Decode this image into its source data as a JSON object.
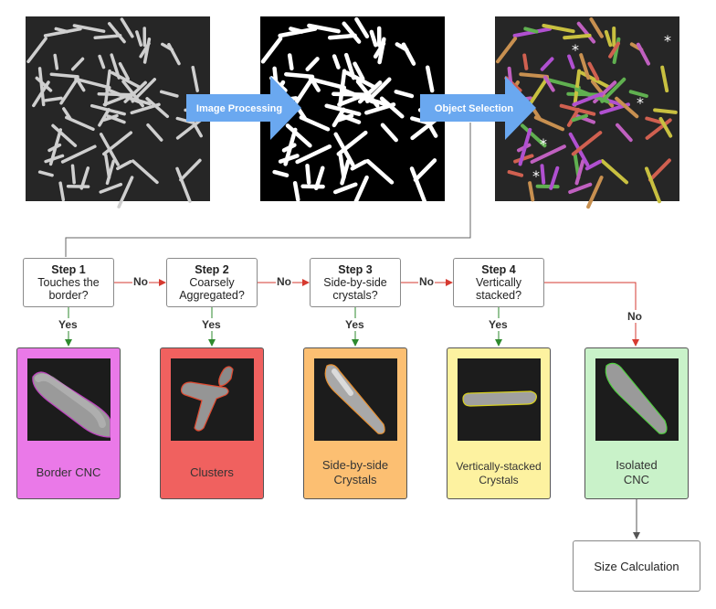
{
  "arrows": {
    "image_processing": "Image Processing",
    "object_selection": "Object Selection"
  },
  "steps": [
    {
      "title": "Step 1",
      "text1": "Touches the",
      "text2": "border?"
    },
    {
      "title": "Step 2",
      "text1": "Coarsely",
      "text2": "Aggregated?"
    },
    {
      "title": "Step 3",
      "text1": "Side-by-side",
      "text2": "crystals?"
    },
    {
      "title": "Step 4",
      "text1": "Vertically",
      "text2": "stacked?"
    }
  ],
  "labels": {
    "no": "No",
    "yes": "Yes"
  },
  "cards": [
    {
      "line1": "Border CNC",
      "line2": "",
      "color": "#ea79e8"
    },
    {
      "line1": "Clusters",
      "line2": "",
      "color": "#f0615f"
    },
    {
      "line1": "Side-by-side",
      "line2": "Crystals",
      "color": "#fcbf72"
    },
    {
      "line1": "Vertically-stacked",
      "line2": "Crystals",
      "color": "#fdf2a0"
    },
    {
      "line1": "Isolated",
      "line2": "CNC",
      "color": "#c9f2c9"
    }
  ],
  "size_calc": "Size Calculation",
  "colors": {
    "arrow_blue": "#6aa8f0",
    "no_line": "#d63a30",
    "yes_line": "#2e8a2e"
  },
  "markers": "*"
}
